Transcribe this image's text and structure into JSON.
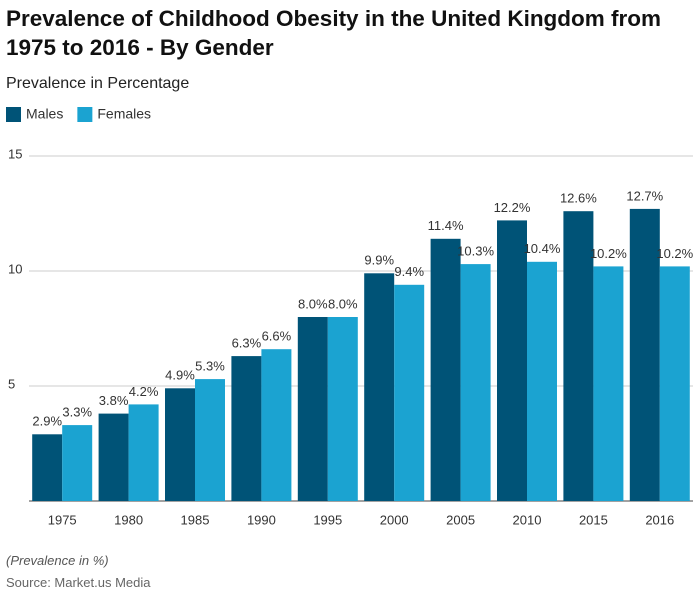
{
  "chart_data": {
    "type": "bar",
    "title": "Prevalence of Childhood Obesity in the United Kingdom from 1975 to 2016 - By Gender",
    "subtitle": "Prevalence in Percentage",
    "note": "(Prevalence in %)",
    "source": "Source: Market.us Media",
    "categories": [
      "1975",
      "1980",
      "1985",
      "1990",
      "1995",
      "2000",
      "2005",
      "2010",
      "2015",
      "2016"
    ],
    "series": [
      {
        "name": "Males",
        "color": "#005377",
        "values": [
          2.9,
          3.8,
          4.9,
          6.3,
          8.0,
          9.9,
          11.4,
          12.2,
          12.6,
          12.7
        ],
        "value_labels": [
          "2.9%",
          "3.8%",
          "4.9%",
          "6.3%",
          "8.0%",
          "9.9%",
          "11.4%",
          "12.2%",
          "12.6%",
          "12.7%"
        ]
      },
      {
        "name": "Females",
        "color": "#1ba3d1",
        "values": [
          3.3,
          4.2,
          5.3,
          6.6,
          8.0,
          9.4,
          10.3,
          10.4,
          10.2,
          10.2
        ],
        "value_labels": [
          "3.3%",
          "4.2%",
          "5.3%",
          "6.6%",
          "8.0%",
          "9.4%",
          "10.3%",
          "10.4%",
          "10.2%",
          "10.2%"
        ]
      }
    ],
    "ylim": [
      0,
      15
    ],
    "yticks": [
      5,
      10,
      15
    ],
    "grid": true
  }
}
